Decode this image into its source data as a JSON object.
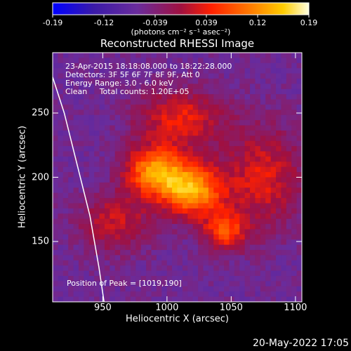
{
  "chart_data": {
    "type": "heatmap",
    "title": "Reconstructed RHESSI Image",
    "xlabel": "Heliocentric X (arcsec)",
    "ylabel": "Heliocentric Y (arcsec)",
    "xlim": [
      911,
      1105
    ],
    "ylim": [
      103,
      297
    ],
    "x_ticks": [
      950,
      1000,
      1050,
      1100
    ],
    "y_ticks": [
      150,
      200,
      250
    ],
    "colorbar": {
      "min": -0.19,
      "max": 0.19,
      "ticks": [
        "-0.19",
        "-0.12",
        "-0.039",
        "0.039",
        "0.12",
        "0.19"
      ],
      "label": "(photons cm⁻² s⁻¹ asec⁻²)",
      "colors": [
        "#0000ff",
        "#400080",
        "#6a2c9c",
        "#a01040",
        "#ff2000",
        "#ff8000",
        "#ffcc00",
        "#ffffe0"
      ]
    },
    "annotations": [
      "23-Apr-2015 18:18:08.000 to 18:22:28.000",
      "Detectors: 3F 5F 6F 7F 8F 9F, Att 0",
      "Energy Range: 3.0 - 6.0 keV",
      "Clean     Total counts: 1.20E+05"
    ],
    "peak_label": "Position of Peak = [1019,190]",
    "peak": [
      1019,
      190
    ],
    "limb_curve": [
      [
        911,
        278
      ],
      [
        920,
        250
      ],
      [
        930,
        210
      ],
      [
        940,
        170
      ],
      [
        947,
        130
      ],
      [
        951,
        103
      ]
    ],
    "source_components": [
      {
        "x": 990,
        "y": 205,
        "sigma_x": 16,
        "sigma_y": 13,
        "amplitude": 0.17
      },
      {
        "x": 1019,
        "y": 190,
        "sigma_x": 17,
        "sigma_y": 14,
        "amplitude": 0.19
      },
      {
        "x": 1045,
        "y": 158,
        "sigma_x": 12,
        "sigma_y": 11,
        "amplitude": 0.12
      },
      {
        "x": 1010,
        "y": 245,
        "sigma_x": 24,
        "sigma_y": 16,
        "amplitude": 0.1
      },
      {
        "x": 960,
        "y": 165,
        "sigma_x": 20,
        "sigma_y": 16,
        "amplitude": 0.08
      },
      {
        "x": 1075,
        "y": 200,
        "sigma_x": 22,
        "sigma_y": 28,
        "amplitude": 0.09
      }
    ],
    "background_level": -0.06
  },
  "footer": {
    "timestamp": "20-May-2022 17:05"
  }
}
